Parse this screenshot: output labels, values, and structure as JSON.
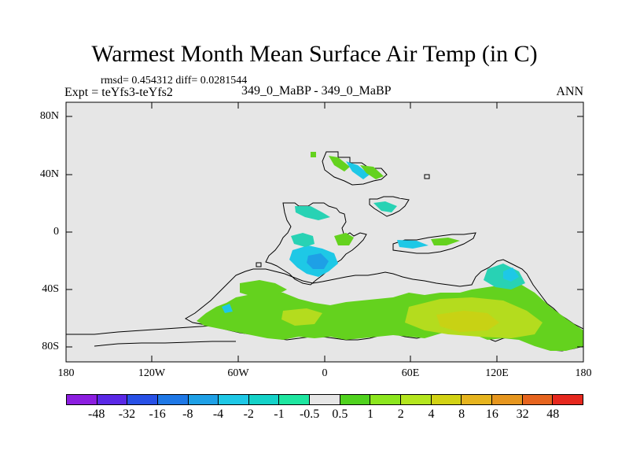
{
  "title": "Warmest Month Mean Surface Air Temp (in C)",
  "stats": "rmsd= 0.454312 diff= 0.0281544",
  "experiment": "Expt = teYfs3-teYfs2",
  "case_label": "349_0_MaBP - 349_0_MaBP",
  "season": "ANN",
  "axes": {
    "y_ticks": [
      "80N",
      "40N",
      "0",
      "40S",
      "80S"
    ],
    "x_ticks": [
      "180",
      "120W",
      "60W",
      "0",
      "60E",
      "120E",
      "180"
    ]
  },
  "colorbar": {
    "colors": [
      "#8c1ee0",
      "#5a28e6",
      "#2850e6",
      "#1e78e6",
      "#1ea0e6",
      "#1ec8e6",
      "#14d2c8",
      "#1ee6a0",
      "#e6e6e6",
      "#50d21e",
      "#8ce61e",
      "#b4e61e",
      "#d2d214",
      "#e6b41e",
      "#e6961e",
      "#e6641e",
      "#e6281e"
    ],
    "labels": [
      "-48",
      "-32",
      "-16",
      "-8",
      "-4",
      "-2",
      "-1",
      "-0.5",
      "0.5",
      "1",
      "2",
      "4",
      "8",
      "16",
      "32",
      "48"
    ]
  },
  "colors": {
    "background_field": "#e6e6e6",
    "green": "#64d21e",
    "yellow_green": "#b4dc1e",
    "cyan": "#1ec8e6",
    "teal": "#28d2b4"
  }
}
